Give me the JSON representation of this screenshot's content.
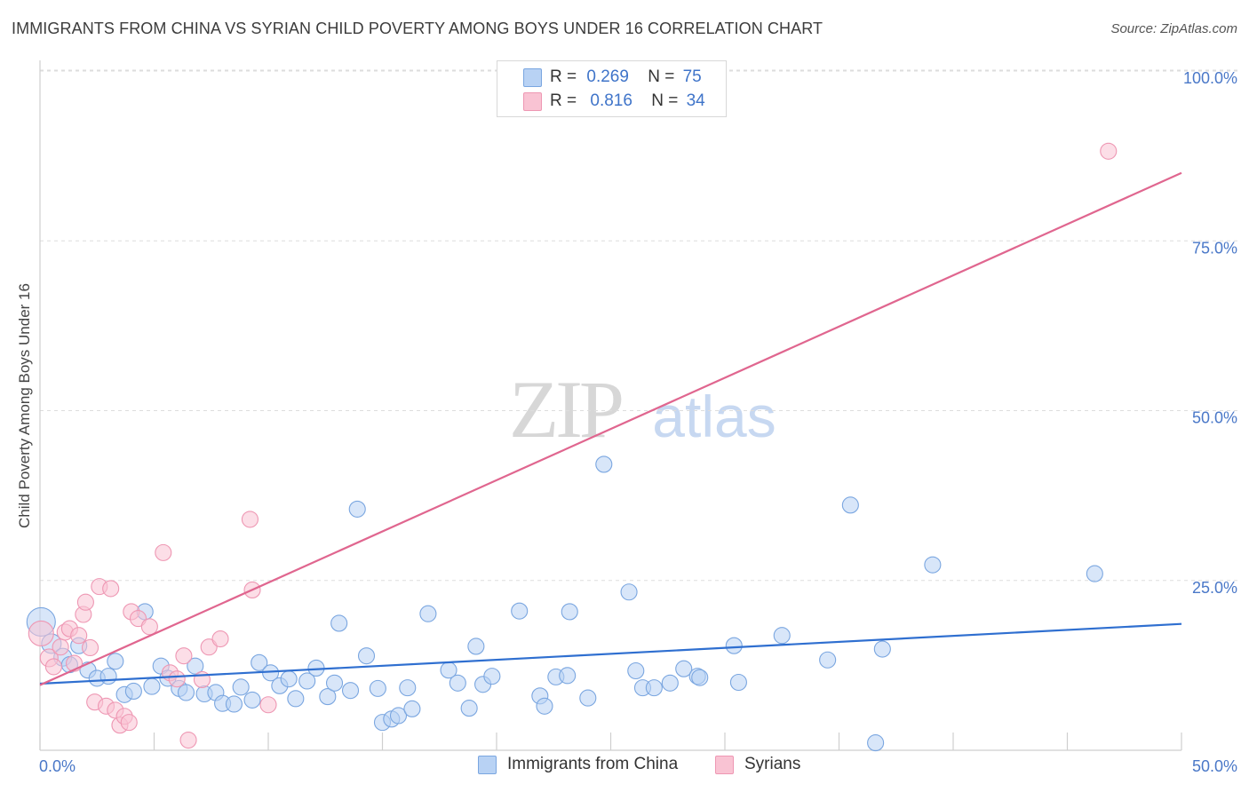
{
  "title": "IMMIGRANTS FROM CHINA VS SYRIAN CHILD POVERTY AMONG BOYS UNDER 16 CORRELATION CHART",
  "source": "Source: ZipAtlas.com",
  "watermark": {
    "zip": "ZIP",
    "atlas": "atlas"
  },
  "colors": {
    "china_fill": "#b8d2f4",
    "china_stroke": "#7aa6e0",
    "china_line": "#2f6fd0",
    "syrian_fill": "#f9c3d3",
    "syrian_stroke": "#ee97b3",
    "syrian_line": "#e0668f",
    "tick_text": "#4a78c8",
    "grid": "#dddddd"
  },
  "legend_top": {
    "rows": [
      {
        "series": "china",
        "r_label": "R =",
        "r_value": "0.269",
        "n_label": "N =",
        "n_value": "75"
      },
      {
        "series": "syrians",
        "r_label": "R =",
        "r_value": "0.816",
        "n_label": "N =",
        "n_value": "34"
      }
    ]
  },
  "chart_data": {
    "type": "scatter",
    "title": "IMMIGRANTS FROM CHINA VS SYRIAN CHILD POVERTY AMONG BOYS UNDER 16 CORRELATION CHART",
    "xlabel": "",
    "ylabel": "Child Poverty Among Boys Under 16",
    "xlim": [
      0,
      50
    ],
    "ylim": [
      0,
      100
    ],
    "x_tick_labels": [
      "0.0%",
      "50.0%"
    ],
    "y_tick_labels": [
      "25.0%",
      "50.0%",
      "75.0%",
      "100.0%"
    ],
    "y_ticks": [
      25,
      50,
      75,
      100
    ],
    "grid": true,
    "legend_placement": "bottom",
    "series": [
      {
        "name": "Immigrants from China",
        "key": "china",
        "trend": {
          "x0": 0,
          "y0": 9.8,
          "x1": 50,
          "y1": 18.6
        },
        "points": [
          [
            0.05,
            18.9,
            16
          ],
          [
            0.5,
            15.7,
            11
          ],
          [
            1.0,
            13.7,
            10
          ],
          [
            1.3,
            12.6,
            9
          ],
          [
            1.7,
            15.4,
            9
          ],
          [
            2.1,
            11.8,
            9
          ],
          [
            2.5,
            10.6,
            9
          ],
          [
            3.0,
            10.9,
            9
          ],
          [
            3.3,
            13.1,
            9
          ],
          [
            3.7,
            8.2,
            9
          ],
          [
            4.1,
            8.7,
            9
          ],
          [
            4.6,
            20.4,
            9
          ],
          [
            4.9,
            9.4,
            9
          ],
          [
            5.3,
            12.4,
            9
          ],
          [
            5.6,
            10.6,
            9
          ],
          [
            6.1,
            9.1,
            9
          ],
          [
            6.4,
            8.5,
            9
          ],
          [
            6.8,
            12.4,
            9
          ],
          [
            7.2,
            8.3,
            9
          ],
          [
            7.7,
            8.5,
            9
          ],
          [
            8.0,
            6.9,
            9
          ],
          [
            8.5,
            6.8,
            9
          ],
          [
            8.8,
            9.3,
            9
          ],
          [
            9.3,
            7.4,
            9
          ],
          [
            9.6,
            12.9,
            9
          ],
          [
            10.1,
            11.4,
            9
          ],
          [
            10.5,
            9.5,
            9
          ],
          [
            10.9,
            10.5,
            9
          ],
          [
            11.2,
            7.6,
            9
          ],
          [
            11.7,
            10.2,
            9
          ],
          [
            12.1,
            12.1,
            9
          ],
          [
            12.6,
            7.9,
            9
          ],
          [
            12.9,
            9.9,
            9
          ],
          [
            13.1,
            18.7,
            9
          ],
          [
            13.6,
            8.8,
            9
          ],
          [
            13.9,
            35.5,
            9
          ],
          [
            14.3,
            13.9,
            9
          ],
          [
            14.8,
            9.1,
            9
          ],
          [
            15.0,
            4.1,
            9
          ],
          [
            15.4,
            4.6,
            9
          ],
          [
            15.7,
            5.1,
            9
          ],
          [
            16.1,
            9.2,
            9
          ],
          [
            16.3,
            6.1,
            9
          ],
          [
            17.0,
            20.1,
            9
          ],
          [
            17.9,
            11.8,
            9
          ],
          [
            18.3,
            9.9,
            9
          ],
          [
            18.8,
            6.2,
            9
          ],
          [
            19.1,
            15.3,
            9
          ],
          [
            19.4,
            9.7,
            9
          ],
          [
            19.8,
            10.9,
            9
          ],
          [
            21.0,
            20.5,
            9
          ],
          [
            21.9,
            8.0,
            9
          ],
          [
            22.1,
            6.5,
            9
          ],
          [
            22.6,
            10.8,
            9
          ],
          [
            23.1,
            11.0,
            9
          ],
          [
            23.2,
            20.4,
            9
          ],
          [
            24.0,
            7.7,
            9
          ],
          [
            24.7,
            42.1,
            9
          ],
          [
            25.8,
            23.3,
            9
          ],
          [
            26.1,
            11.7,
            9
          ],
          [
            26.4,
            9.2,
            9
          ],
          [
            26.9,
            9.2,
            9
          ],
          [
            27.6,
            9.9,
            9
          ],
          [
            28.2,
            12.0,
            9
          ],
          [
            28.8,
            10.9,
            9
          ],
          [
            28.9,
            10.7,
            9
          ],
          [
            30.4,
            15.4,
            9
          ],
          [
            30.6,
            10.0,
            9
          ],
          [
            32.5,
            16.9,
            9
          ],
          [
            34.5,
            13.3,
            9
          ],
          [
            35.5,
            36.1,
            9
          ],
          [
            36.6,
            1.1,
            9
          ],
          [
            36.9,
            14.9,
            9
          ],
          [
            39.1,
            27.3,
            9
          ],
          [
            46.2,
            26.0,
            9
          ]
        ]
      },
      {
        "name": "Syrians",
        "key": "syrians",
        "trend": {
          "x0": 0,
          "y0": 9.6,
          "x1": 50,
          "y1": 85.0
        },
        "points": [
          [
            0.05,
            17.2,
            14
          ],
          [
            0.4,
            13.6,
            10
          ],
          [
            0.6,
            12.3,
            9
          ],
          [
            0.9,
            15.2,
            9
          ],
          [
            1.1,
            17.4,
            9
          ],
          [
            1.3,
            17.9,
            9
          ],
          [
            1.5,
            12.8,
            9
          ],
          [
            1.7,
            16.9,
            9
          ],
          [
            1.9,
            20.0,
            9
          ],
          [
            2.0,
            21.8,
            9
          ],
          [
            2.2,
            15.1,
            9
          ],
          [
            2.4,
            7.1,
            9
          ],
          [
            2.6,
            24.1,
            9
          ],
          [
            2.9,
            6.5,
            9
          ],
          [
            3.1,
            23.8,
            9
          ],
          [
            3.3,
            5.9,
            9
          ],
          [
            3.5,
            3.7,
            9
          ],
          [
            3.7,
            5.0,
            9
          ],
          [
            3.9,
            4.1,
            9
          ],
          [
            4.0,
            20.4,
            9
          ],
          [
            4.3,
            19.4,
            9
          ],
          [
            4.8,
            18.2,
            9
          ],
          [
            5.4,
            29.1,
            9
          ],
          [
            5.7,
            11.4,
            9
          ],
          [
            6.0,
            10.5,
            9
          ],
          [
            6.3,
            13.9,
            9
          ],
          [
            6.5,
            1.5,
            9
          ],
          [
            7.1,
            10.4,
            9
          ],
          [
            7.4,
            15.2,
            9
          ],
          [
            7.9,
            16.4,
            9
          ],
          [
            9.2,
            34.0,
            9
          ],
          [
            9.3,
            23.6,
            9
          ],
          [
            10.0,
            6.7,
            9
          ],
          [
            46.8,
            88.2,
            9
          ]
        ]
      }
    ]
  }
}
